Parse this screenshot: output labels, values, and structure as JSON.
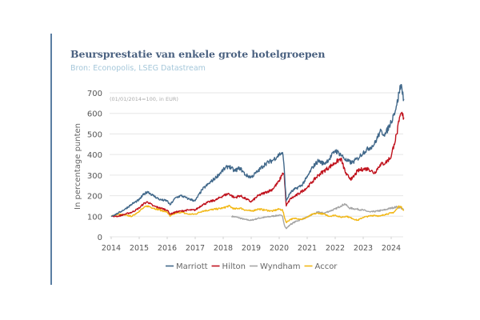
{
  "header": {
    "title": "Beursprestatie van enkele grote hotelgroepen",
    "source": "Bron: Econopolis, LSEG Datastream"
  },
  "colors": {
    "accent": "#5a7ea3",
    "title": "#4a6180",
    "source": "#a5c7da",
    "gridline": "#e6e6e6"
  },
  "chart_data": {
    "type": "line",
    "title": "Beursprestatie van enkele grote hotelgroepen",
    "subtitle": "Bron: Econopolis, LSEG Datastream",
    "annotation": "(01/01/2014=100, in EUR)",
    "xlabel": "",
    "ylabel": "In percentage punten",
    "xlim": [
      2014,
      2024.45
    ],
    "ylim": [
      0,
      700
    ],
    "x_ticks": [
      "2014",
      "2015",
      "2016",
      "2017",
      "2018",
      "2019",
      "2020",
      "2021",
      "2022",
      "2023",
      "2024"
    ],
    "y_ticks": [
      "0",
      "100",
      "200",
      "300",
      "400",
      "500",
      "600",
      "700"
    ],
    "grid": true,
    "legend_position": "bottom-center",
    "series": [
      {
        "name": "Marriott",
        "color": "#41688a",
        "x": [
          2014.0,
          2014.25,
          2014.5,
          2014.75,
          2015.0,
          2015.15,
          2015.3,
          2015.5,
          2015.75,
          2016.0,
          2016.1,
          2016.3,
          2016.5,
          2016.75,
          2017.0,
          2017.25,
          2017.5,
          2017.75,
          2018.0,
          2018.2,
          2018.4,
          2018.6,
          2018.8,
          2019.0,
          2019.25,
          2019.5,
          2019.75,
          2020.0,
          2020.12,
          2020.18,
          2020.25,
          2020.4,
          2020.6,
          2020.8,
          2021.0,
          2021.2,
          2021.4,
          2021.6,
          2021.8,
          2022.0,
          2022.2,
          2022.4,
          2022.6,
          2022.8,
          2023.0,
          2023.2,
          2023.4,
          2023.6,
          2023.8,
          2024.0,
          2024.1,
          2024.2,
          2024.28,
          2024.35,
          2024.45
        ],
        "values": [
          100,
          115,
          135,
          160,
          180,
          205,
          220,
          200,
          180,
          175,
          155,
          190,
          200,
          185,
          175,
          230,
          260,
          290,
          325,
          345,
          320,
          335,
          300,
          290,
          320,
          355,
          370,
          400,
          410,
          330,
          175,
          215,
          235,
          250,
          290,
          340,
          370,
          355,
          380,
          420,
          400,
          370,
          360,
          380,
          410,
          430,
          450,
          510,
          500,
          560,
          600,
          640,
          700,
          740,
          670
        ]
      },
      {
        "name": "Hilton",
        "color": "#c0121d",
        "x": [
          2014.0,
          2014.25,
          2014.5,
          2014.75,
          2015.0,
          2015.15,
          2015.3,
          2015.5,
          2015.75,
          2016.0,
          2016.1,
          2016.3,
          2016.5,
          2016.75,
          2017.0,
          2017.25,
          2017.5,
          2017.75,
          2018.0,
          2018.2,
          2018.4,
          2018.6,
          2018.8,
          2019.0,
          2019.25,
          2019.5,
          2019.75,
          2020.0,
          2020.12,
          2020.18,
          2020.25,
          2020.4,
          2020.6,
          2020.8,
          2021.0,
          2021.2,
          2021.4,
          2021.6,
          2021.8,
          2022.0,
          2022.2,
          2022.4,
          2022.6,
          2022.8,
          2023.0,
          2023.2,
          2023.4,
          2023.6,
          2023.8,
          2024.0,
          2024.1,
          2024.2,
          2024.28,
          2024.35,
          2024.45
        ],
        "values": [
          100,
          100,
          110,
          120,
          140,
          160,
          170,
          150,
          140,
          130,
          110,
          120,
          125,
          130,
          130,
          155,
          170,
          180,
          200,
          210,
          190,
          200,
          185,
          170,
          200,
          215,
          230,
          270,
          310,
          300,
          150,
          185,
          200,
          220,
          240,
          270,
          300,
          320,
          340,
          360,
          380,
          300,
          280,
          320,
          330,
          330,
          310,
          350,
          360,
          390,
          450,
          500,
          560,
          600,
          580
        ]
      },
      {
        "name": "Wyndham",
        "color": "#a5a5a5",
        "x": [
          2018.3,
          2018.5,
          2018.75,
          2019.0,
          2019.25,
          2019.5,
          2019.75,
          2020.0,
          2020.12,
          2020.18,
          2020.25,
          2020.4,
          2020.6,
          2020.8,
          2021.0,
          2021.2,
          2021.4,
          2021.6,
          2021.8,
          2022.0,
          2022.2,
          2022.35,
          2022.5,
          2022.75,
          2023.0,
          2023.25,
          2023.5,
          2023.75,
          2024.0,
          2024.2,
          2024.35,
          2024.45
        ],
        "values": [
          100,
          95,
          85,
          80,
          90,
          95,
          100,
          105,
          100,
          60,
          40,
          60,
          75,
          85,
          95,
          110,
          120,
          115,
          125,
          135,
          150,
          160,
          140,
          135,
          130,
          120,
          125,
          130,
          140,
          145,
          140,
          130
        ]
      },
      {
        "name": "Accor",
        "color": "#f2b816",
        "x": [
          2014.0,
          2014.25,
          2014.5,
          2014.75,
          2015.0,
          2015.15,
          2015.3,
          2015.5,
          2015.75,
          2016.0,
          2016.1,
          2016.3,
          2016.5,
          2016.75,
          2017.0,
          2017.25,
          2017.5,
          2017.75,
          2018.0,
          2018.2,
          2018.4,
          2018.6,
          2018.8,
          2019.0,
          2019.25,
          2019.5,
          2019.75,
          2020.0,
          2020.12,
          2020.18,
          2020.25,
          2020.4,
          2020.6,
          2020.8,
          2021.0,
          2021.2,
          2021.4,
          2021.6,
          2021.8,
          2022.0,
          2022.2,
          2022.4,
          2022.6,
          2022.8,
          2023.0,
          2023.2,
          2023.4,
          2023.6,
          2023.8,
          2024.0,
          2024.1,
          2024.2,
          2024.28,
          2024.35,
          2024.45
        ],
        "values": [
          100,
          110,
          105,
          100,
          125,
          140,
          150,
          140,
          130,
          120,
          100,
          115,
          120,
          110,
          110,
          125,
          130,
          135,
          140,
          150,
          135,
          140,
          130,
          125,
          135,
          130,
          125,
          135,
          130,
          100,
          70,
          85,
          90,
          85,
          95,
          110,
          115,
          110,
          100,
          105,
          95,
          100,
          90,
          80,
          95,
          100,
          105,
          100,
          110,
          115,
          120,
          135,
          150,
          145,
          130
        ]
      }
    ]
  }
}
